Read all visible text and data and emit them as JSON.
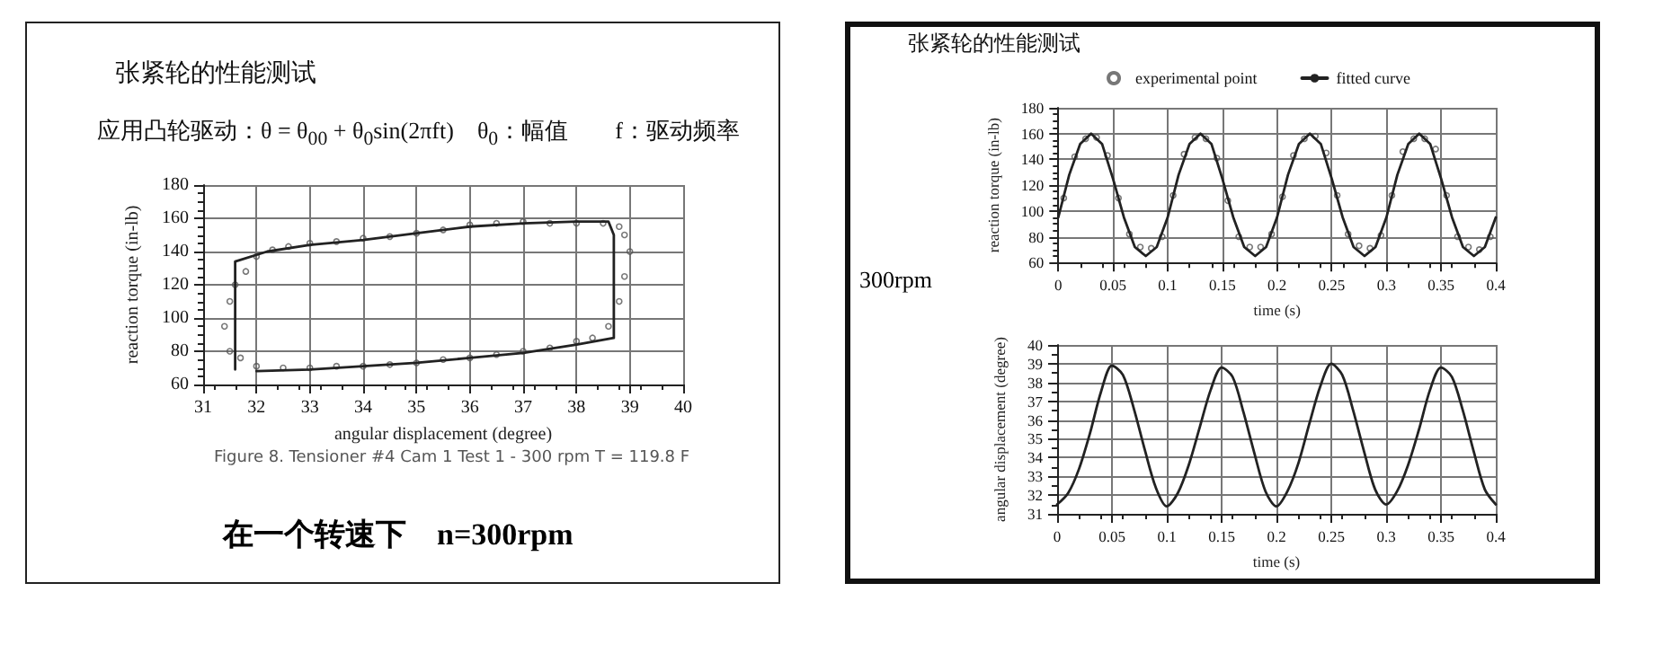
{
  "chart_data": [
    {
      "type": "scatter",
      "title": "张紧轮的性能测试",
      "subtitle": "应用凸轮驱动：θ = θ$_{00}$ + θ$_{0}$sin(2πft)　θ$_{0}$：幅值　　f：驱动频率",
      "xlabel": "angular displacement (degree)",
      "ylabel": "reaction torque (in-lb)",
      "annotations": [
        "Figure 8.  Tensioner #4 Cam 1 Test 1 - 300 rpm T = 119.8 F",
        "在一个转速下　n=300rpm"
      ],
      "xlim": [
        31,
        40
      ],
      "ylim": [
        60,
        180
      ],
      "xticks": [
        31,
        32,
        33,
        34,
        35,
        36,
        37,
        38,
        39,
        40
      ],
      "yticks": [
        60,
        80,
        100,
        120,
        140,
        160,
        180
      ],
      "grid": true,
      "legend": false,
      "series": [
        {
          "type": "line",
          "color": "#222222",
          "marker": "none",
          "line_style": "solid",
          "x": [
            31.6,
            31.6,
            32.2,
            33,
            34,
            35,
            36,
            37,
            38,
            38.6,
            38.7,
            38.7,
            38,
            37,
            36,
            35,
            34,
            33,
            32
          ],
          "values": [
            69,
            134,
            140,
            144,
            147,
            151,
            155,
            157,
            158,
            158,
            150,
            88,
            84,
            79,
            76,
            73,
            71,
            69,
            68
          ]
        },
        {
          "type": "scatter",
          "color": "#555555",
          "marker": "circle",
          "x": [
            31.8,
            32,
            32.3,
            32.6,
            33,
            33.5,
            34,
            34.5,
            35,
            35.5,
            36,
            36.5,
            37,
            37.5,
            38,
            38.5,
            38.8,
            38.9,
            39,
            38.9,
            38.8,
            38.6,
            38.3,
            38,
            37.5,
            37,
            36.5,
            36,
            35.5,
            35,
            34.5,
            34,
            33.5,
            33,
            32.5,
            32,
            31.7,
            31.5,
            31.4,
            31.5,
            31.6
          ],
          "values": [
            128,
            137,
            141,
            143,
            145,
            146,
            148,
            149,
            151,
            153,
            156,
            157,
            158,
            157,
            157,
            157,
            155,
            150,
            140,
            125,
            110,
            95,
            88,
            86,
            82,
            80,
            78,
            76,
            75,
            73,
            72,
            71,
            71,
            70,
            70,
            71,
            76,
            80,
            95,
            110,
            120
          ]
        }
      ]
    },
    {
      "type": "line",
      "title": "张紧轮的性能测试",
      "xlabel": "time (s)",
      "ylabel": "reaction torque (in-lb)",
      "annotations": [
        "300rpm"
      ],
      "xlim": [
        0,
        0.4
      ],
      "ylim": [
        60,
        180
      ],
      "xticks": [
        0,
        0.05,
        0.1,
        0.15,
        0.2,
        0.25,
        0.3,
        0.35,
        0.4
      ],
      "yticks": [
        60,
        80,
        100,
        120,
        140,
        160,
        180
      ],
      "grid": true,
      "legend": "top",
      "series": [
        {
          "name": "experimental point",
          "type": "scatter",
          "color": "#555555",
          "marker": "circle",
          "x": [
            0.005,
            0.015,
            0.025,
            0.035,
            0.045,
            0.055,
            0.065,
            0.075,
            0.085,
            0.095,
            0.105,
            0.115,
            0.125,
            0.135,
            0.145,
            0.155,
            0.165,
            0.175,
            0.185,
            0.195,
            0.205,
            0.215,
            0.225,
            0.235,
            0.245,
            0.255,
            0.265,
            0.275,
            0.285,
            0.295,
            0.305,
            0.315,
            0.325,
            0.335,
            0.345,
            0.355,
            0.365,
            0.375,
            0.385,
            0.395
          ],
          "values": [
            110,
            142,
            156,
            157,
            143,
            110,
            82,
            72,
            71,
            80,
            112,
            144,
            157,
            156,
            141,
            108,
            80,
            72,
            72,
            82,
            111,
            143,
            156,
            158,
            145,
            112,
            82,
            73,
            71,
            81,
            112,
            146,
            156,
            156,
            148,
            112,
            80,
            72,
            70,
            80
          ]
        },
        {
          "name": "fitted curve",
          "type": "line",
          "color": "#222222",
          "marker": "none",
          "line_style": "solid",
          "x": [
            0,
            0.01,
            0.02,
            0.03,
            0.04,
            0.05,
            0.06,
            0.07,
            0.08,
            0.09,
            0.1,
            0.11,
            0.12,
            0.13,
            0.14,
            0.15,
            0.16,
            0.17,
            0.18,
            0.19,
            0.2,
            0.21,
            0.22,
            0.23,
            0.24,
            0.25,
            0.26,
            0.27,
            0.28,
            0.29,
            0.3,
            0.31,
            0.32,
            0.33,
            0.34,
            0.35,
            0.36,
            0.37,
            0.38,
            0.39,
            0.4
          ],
          "values": [
            95,
            128,
            152,
            160,
            152,
            125,
            95,
            72,
            65,
            72,
            95,
            128,
            152,
            160,
            152,
            125,
            95,
            72,
            65,
            72,
            95,
            128,
            152,
            160,
            152,
            125,
            95,
            72,
            65,
            72,
            95,
            128,
            152,
            160,
            152,
            125,
            95,
            72,
            65,
            72,
            95
          ]
        }
      ]
    },
    {
      "type": "line",
      "xlabel": "time (s)",
      "ylabel": "angular displacement (degree)",
      "xlim": [
        0,
        0.4
      ],
      "ylim": [
        31,
        40
      ],
      "xticks": [
        0,
        0.05,
        0.1,
        0.15,
        0.2,
        0.25,
        0.3,
        0.35,
        0.4
      ],
      "yticks": [
        31,
        32,
        33,
        34,
        35,
        36,
        37,
        38,
        39,
        40
      ],
      "grid": true,
      "legend": false,
      "marker": "none",
      "line_style": "solid",
      "x": [
        0,
        0.01,
        0.02,
        0.03,
        0.04,
        0.05,
        0.06,
        0.07,
        0.08,
        0.09,
        0.1,
        0.11,
        0.12,
        0.13,
        0.14,
        0.15,
        0.16,
        0.17,
        0.18,
        0.19,
        0.2,
        0.21,
        0.22,
        0.23,
        0.24,
        0.25,
        0.26,
        0.27,
        0.28,
        0.29,
        0.3,
        0.31,
        0.32,
        0.33,
        0.34,
        0.35,
        0.36,
        0.37,
        0.38,
        0.39,
        0.4
      ],
      "series": [
        {
          "color": "#222222",
          "values": [
            31.5,
            32.1,
            33.4,
            35.3,
            37.5,
            38.9,
            38.4,
            36.6,
            34.4,
            32.4,
            31.4,
            32.1,
            33.6,
            35.6,
            37.6,
            38.8,
            38.3,
            36.4,
            34.2,
            32.2,
            31.4,
            32.2,
            33.7,
            35.8,
            37.8,
            39.0,
            38.4,
            36.5,
            34.3,
            32.3,
            31.5,
            32.2,
            33.6,
            35.5,
            37.6,
            38.8,
            38.3,
            36.5,
            34.3,
            32.3,
            31.5
          ]
        }
      ]
    }
  ]
}
